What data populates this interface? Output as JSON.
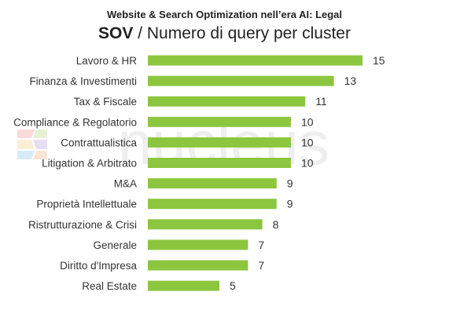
{
  "header": {
    "subtitle": "Website & Search Optimization nell’era AI: Legal",
    "title_strong": "SOV",
    "title_rest": " / Numero di query per cluster"
  },
  "watermark": {
    "text": "nucleus"
  },
  "colors": {
    "bar": "#8cc63f",
    "label": "#333333",
    "value": "#333333",
    "watermark": "#eeeeee"
  },
  "chart_data": {
    "type": "bar",
    "orientation": "horizontal",
    "title": "SOV / Numero di query per cluster",
    "subtitle": "Website & Search Optimization nell’era AI: Legal",
    "categories": [
      "Lavoro & HR",
      "Finanza & Investimenti",
      "Tax & Fiscale",
      "Compliance & Regolatorio",
      "Contrattualistica",
      "Litigation & Arbitrato",
      "M&A",
      "Proprietà Intellettuale",
      "Ristrutturazione & Crisi",
      "Generale",
      "Diritto d'Impresa",
      "Real Estate"
    ],
    "values": [
      15,
      13,
      11,
      10,
      10,
      10,
      9,
      9,
      8,
      7,
      7,
      5
    ],
    "xlim": [
      0,
      15
    ],
    "grid": false,
    "data_labels": true
  }
}
